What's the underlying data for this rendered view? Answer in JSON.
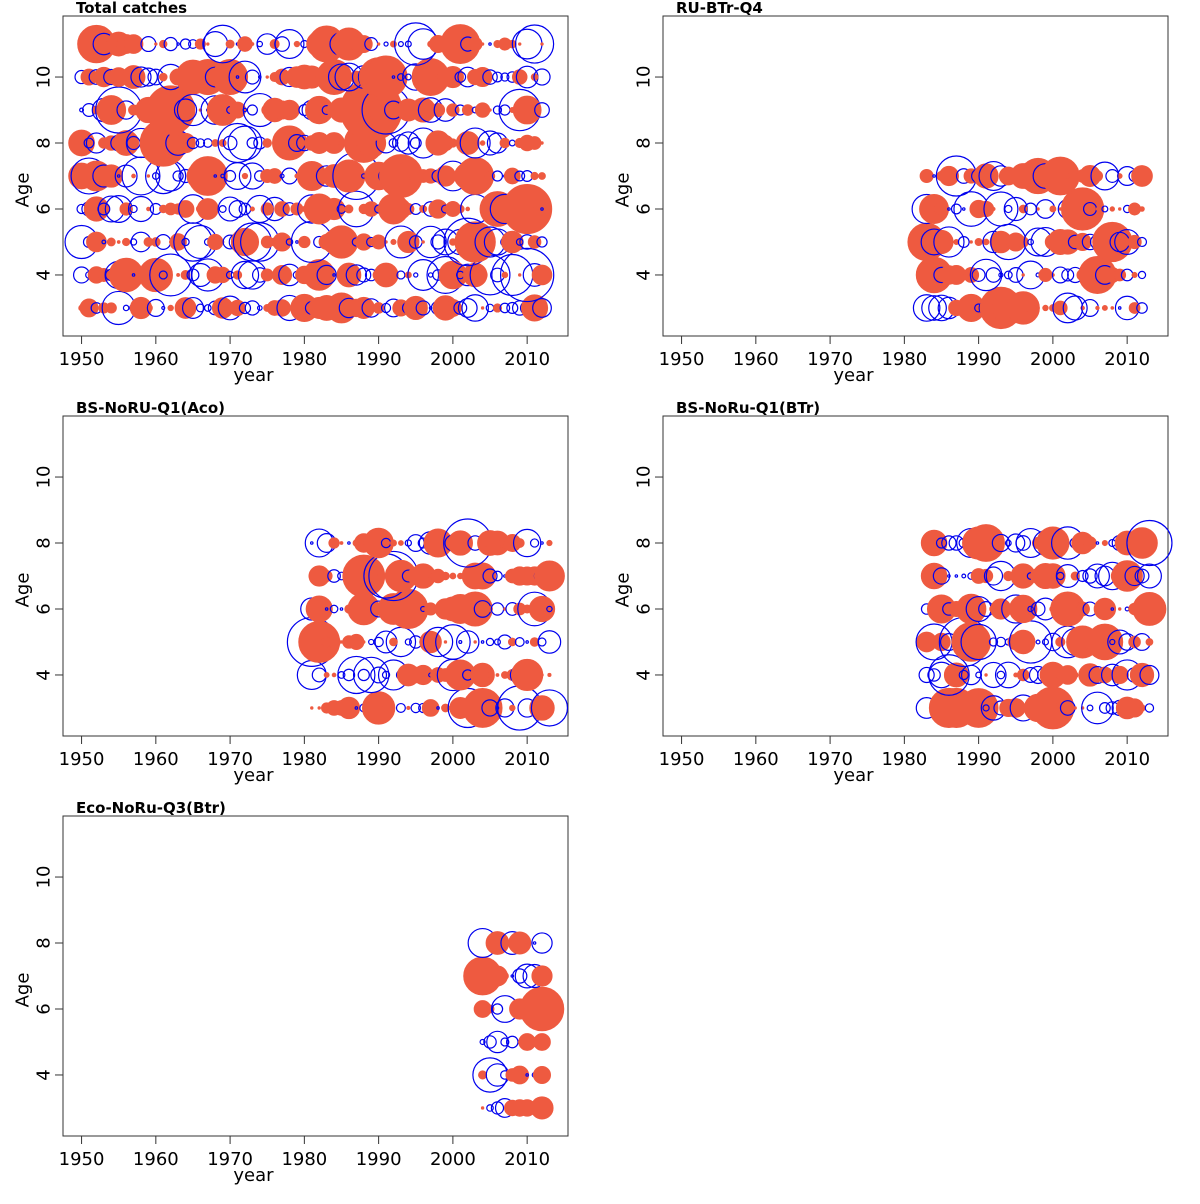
{
  "colors": {
    "positive": "#ee5a40",
    "negative": "#0000ee",
    "frame": "#333333"
  },
  "chart_data": [
    {
      "type": "scatter",
      "style": "bubble residual plot: filled red = positive, open blue = negative",
      "title": "Total catches",
      "xlabel": "year",
      "ylabel": "Age",
      "xlim": [
        1947.5,
        2015.5
      ],
      "ylim": [
        2.15,
        11.85
      ],
      "xticks": [
        "1950",
        "1960",
        "1970",
        "1980",
        "1990",
        "2000",
        "2010"
      ],
      "yticks": [
        "4",
        "6",
        "8",
        "10"
      ],
      "years": [
        1950,
        2012
      ],
      "ages": [
        3,
        4,
        5,
        6,
        7,
        8,
        9,
        10,
        11
      ],
      "seed": 11,
      "highlights": [
        {
          "year": 1980,
          "age": 3,
          "r": 1.6
        },
        {
          "year": 1972,
          "age": 5,
          "r": 1.6
        },
        {
          "year": 1989,
          "age": 8,
          "r": 1.7
        },
        {
          "year": 1989,
          "age": 9,
          "r": 3.6
        },
        {
          "year": 1985,
          "age": 5,
          "r": 1.9
        },
        {
          "year": 1989,
          "age": 10,
          "r": -1.5
        },
        {
          "year": 1955,
          "age": 11,
          "r": 1.4
        },
        {
          "year": 1964,
          "age": 9,
          "r": -1.3
        }
      ]
    },
    {
      "type": "scatter",
      "style": "bubble residual plot: filled red = positive, open blue = negative",
      "title": "RU-BTr-Q4",
      "xlabel": "year",
      "ylabel": "Age",
      "xlim": [
        1947.5,
        2015.5
      ],
      "ylim": [
        2.15,
        11.85
      ],
      "xticks": [
        "1950",
        "1960",
        "1970",
        "1980",
        "1990",
        "2000",
        "2010"
      ],
      "yticks": [
        "4",
        "6",
        "8",
        "10"
      ],
      "years": [
        1983,
        2012
      ],
      "ages": [
        3,
        4,
        5,
        6,
        7
      ],
      "seed": 23,
      "highlights": [
        {
          "year": 1983,
          "age": 5,
          "r": 2.2
        },
        {
          "year": 1984,
          "age": 6,
          "r": 1.7
        },
        {
          "year": 1989,
          "age": 3,
          "r": 1.6
        },
        {
          "year": 1997,
          "age": 7,
          "r": 1.6
        },
        {
          "year": 1992,
          "age": 7,
          "r": -1.7
        },
        {
          "year": 1985,
          "age": 3,
          "r": -1.5
        }
      ]
    },
    {
      "type": "scatter",
      "style": "bubble residual plot: filled red = positive, open blue = negative",
      "title": "BS-NoRU-Q1(Aco)",
      "xlabel": "year",
      "ylabel": "Age",
      "xlim": [
        1947.5,
        2015.5
      ],
      "ylim": [
        2.15,
        11.85
      ],
      "xticks": [
        "1950",
        "1960",
        "1970",
        "1980",
        "1990",
        "2000",
        "2010"
      ],
      "yticks": [
        "4",
        "6",
        "8",
        "10"
      ],
      "years": [
        1981,
        2013
      ],
      "ages": [
        3,
        4,
        5,
        6,
        7,
        8
      ],
      "seed": 37,
      "highlights": [
        {
          "year": 1990,
          "age": 3,
          "r": 1.9
        },
        {
          "year": 2001,
          "age": 6,
          "r": 1.7
        },
        {
          "year": 1981,
          "age": 4,
          "r": -1.7
        },
        {
          "year": 1981,
          "age": 6,
          "r": -1.3
        },
        {
          "year": 2006,
          "age": 8,
          "r": 1.4
        },
        {
          "year": 1983,
          "age": 8,
          "r": -1.1
        }
      ]
    },
    {
      "type": "scatter",
      "style": "bubble residual plot: filled red = positive, open blue = negative",
      "title": "BS-NoRu-Q1(BTr)",
      "xlabel": "year",
      "ylabel": "Age",
      "xlim": [
        1947.5,
        2015.5
      ],
      "ylim": [
        2.15,
        11.85
      ],
      "xticks": [
        "1950",
        "1960",
        "1970",
        "1980",
        "1990",
        "2000",
        "2010"
      ],
      "yticks": [
        "4",
        "6",
        "8",
        "10"
      ],
      "years": [
        1983,
        2013
      ],
      "ages": [
        3,
        4,
        5,
        6,
        7,
        8
      ],
      "seed": 53,
      "highlights": [
        {
          "year": 1984,
          "age": 8,
          "r": 1.5
        },
        {
          "year": 1984,
          "age": 7,
          "r": 1.5
        },
        {
          "year": 1989,
          "age": 8,
          "r": -1.7
        },
        {
          "year": 1985,
          "age": 4,
          "r": -1.5
        },
        {
          "year": 2000,
          "age": 4,
          "r": 1.5
        },
        {
          "year": 2010,
          "age": 8,
          "r": 1.4
        }
      ]
    },
    {
      "type": "scatter",
      "style": "bubble residual plot: filled red = positive, open blue = negative",
      "title": "Eco-NoRu-Q3(Btr)",
      "xlabel": "year",
      "ylabel": "Age",
      "xlim": [
        1947.5,
        2015.5
      ],
      "ylim": [
        2.15,
        11.85
      ],
      "xticks": [
        "1950",
        "1960",
        "1970",
        "1980",
        "1990",
        "2000",
        "2010"
      ],
      "yticks": [
        "4",
        "6",
        "8",
        "10"
      ],
      "years": [
        2004,
        2012
      ],
      "ages": [
        3,
        4,
        5,
        6,
        7,
        8
      ],
      "seed": 71,
      "highlights": [
        {
          "year": 2009,
          "age": 8,
          "r": 1.3
        },
        {
          "year": 2012,
          "age": 3,
          "r": 1.3
        },
        {
          "year": 2010,
          "age": 7,
          "r": -1.4
        },
        {
          "year": 2007,
          "age": 3,
          "r": -1.1
        },
        {
          "year": 2012,
          "age": 4,
          "r": 1.0
        }
      ]
    }
  ]
}
